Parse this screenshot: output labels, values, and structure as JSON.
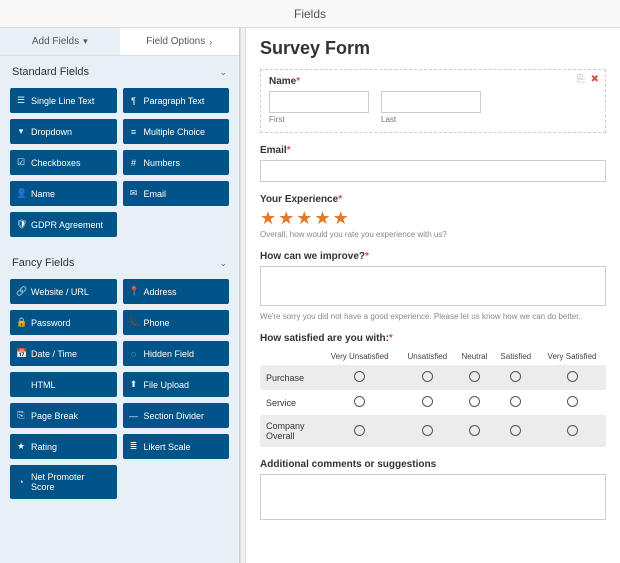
{
  "topbar": {
    "title": "Fields"
  },
  "tabs": {
    "add": "Add Fields",
    "options": "Field Options"
  },
  "groups": [
    {
      "title": "Standard Fields",
      "items": [
        {
          "icon": "☰",
          "label": "Single Line Text",
          "name": "single-line-text"
        },
        {
          "icon": "¶",
          "label": "Paragraph Text",
          "name": "paragraph-text"
        },
        {
          "icon": "▾",
          "label": "Dropdown",
          "name": "dropdown"
        },
        {
          "icon": "≡",
          "label": "Multiple Choice",
          "name": "multiple-choice"
        },
        {
          "icon": "☑",
          "label": "Checkboxes",
          "name": "checkboxes"
        },
        {
          "icon": "#",
          "label": "Numbers",
          "name": "numbers"
        },
        {
          "icon": "👤",
          "label": "Name",
          "name": "name"
        },
        {
          "icon": "✉",
          "label": "Email",
          "name": "email"
        },
        {
          "icon": "🛡",
          "label": "GDPR Agreement",
          "name": "gdpr-agreement"
        }
      ]
    },
    {
      "title": "Fancy Fields",
      "items": [
        {
          "icon": "🔗",
          "label": "Website / URL",
          "name": "website-url"
        },
        {
          "icon": "📍",
          "label": "Address",
          "name": "address"
        },
        {
          "icon": "🔒",
          "label": "Password",
          "name": "password"
        },
        {
          "icon": "📞",
          "label": "Phone",
          "name": "phone"
        },
        {
          "icon": "📅",
          "label": "Date / Time",
          "name": "date-time"
        },
        {
          "icon": "◌",
          "label": "Hidden Field",
          "name": "hidden-field"
        },
        {
          "icon": "</>",
          "label": "HTML",
          "name": "html"
        },
        {
          "icon": "⬆",
          "label": "File Upload",
          "name": "file-upload"
        },
        {
          "icon": "⎘",
          "label": "Page Break",
          "name": "page-break"
        },
        {
          "icon": "—",
          "label": "Section Divider",
          "name": "section-divider"
        },
        {
          "icon": "★",
          "label": "Rating",
          "name": "rating"
        },
        {
          "icon": "≣",
          "label": "Likert Scale",
          "name": "likert-scale"
        },
        {
          "icon": "◔",
          "label": "Net Promoter Score",
          "name": "net-promoter-score"
        }
      ]
    }
  ],
  "form": {
    "title": "Survey Form",
    "name": {
      "label": "Name",
      "first": "First",
      "last": "Last"
    },
    "email": {
      "label": "Email"
    },
    "experience": {
      "label": "Your Experience",
      "hint": "Overall, how would you rate you experience with us?"
    },
    "improve": {
      "label": "How can we improve?",
      "hint": "We're sorry you did not have a good experience. Please let us know how we can do better."
    },
    "satisfied": {
      "label": "How satisfied are you with:",
      "cols": [
        "Very Unsatisfied",
        "Unsatisfied",
        "Neutral",
        "Satisfied",
        "Very Satisfied"
      ],
      "rows": [
        "Purchase",
        "Service",
        "Company Overall"
      ]
    },
    "comments": {
      "label": "Additional comments or suggestions"
    }
  }
}
